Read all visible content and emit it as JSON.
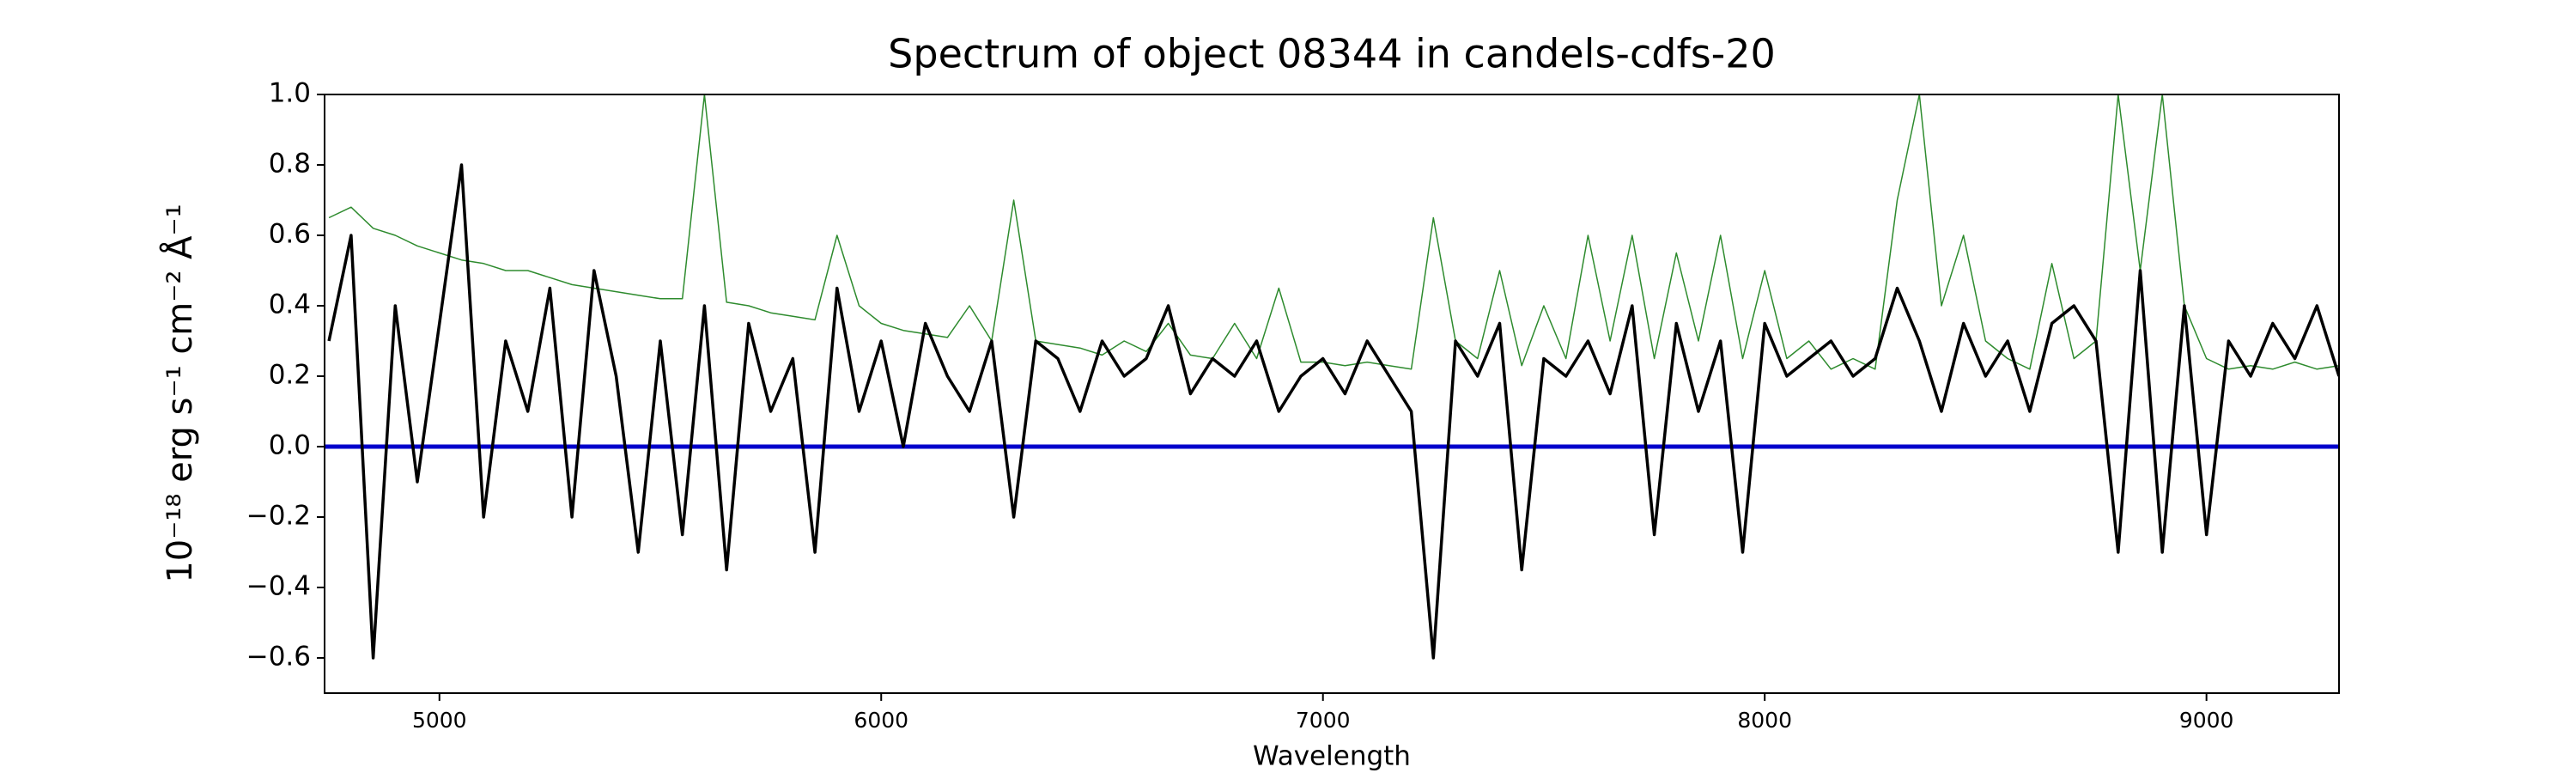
{
  "chart_data": {
    "type": "line",
    "title": "Spectrum of object 08344 in candels-cdfs-20",
    "xlabel": "Wavelength",
    "ylabel": "10⁻¹⁸ erg s⁻¹ cm⁻² Å⁻¹",
    "xlim": [
      4740,
      9300
    ],
    "ylim": [
      -0.7,
      1.0
    ],
    "xticks": [
      5000,
      6000,
      7000,
      8000,
      9000
    ],
    "yticks": [
      {
        "value": -0.6,
        "label": "−0.6"
      },
      {
        "value": -0.4,
        "label": "−0.4"
      },
      {
        "value": -0.2,
        "label": "−0.2"
      },
      {
        "value": 0,
        "label": "0.0"
      },
      0.2,
      0.4,
      0.6,
      0.8,
      {
        "value": 1,
        "label": "1.0"
      }
    ],
    "hline": {
      "value": 0,
      "color": "#0000cc"
    },
    "x": [
      4750,
      4800,
      4850,
      4900,
      4950,
      5000,
      5050,
      5100,
      5150,
      5200,
      5250,
      5300,
      5350,
      5400,
      5450,
      5500,
      5550,
      5600,
      5650,
      5700,
      5750,
      5800,
      5850,
      5900,
      5950,
      6000,
      6050,
      6100,
      6150,
      6200,
      6250,
      6300,
      6350,
      6400,
      6450,
      6500,
      6550,
      6600,
      6650,
      6700,
      6750,
      6800,
      6850,
      6900,
      6950,
      7000,
      7050,
      7100,
      7150,
      7200,
      7250,
      7300,
      7350,
      7400,
      7450,
      7500,
      7550,
      7600,
      7650,
      7700,
      7750,
      7800,
      7850,
      7900,
      7950,
      8000,
      8050,
      8100,
      8150,
      8200,
      8250,
      8300,
      8350,
      8400,
      8450,
      8500,
      8550,
      8600,
      8650,
      8700,
      8750,
      8800,
      8850,
      8900,
      8950,
      9000,
      9050,
      9100,
      9150,
      9200,
      9250,
      9300
    ],
    "series": [
      {
        "color": "#2e8b2e",
        "width": 1.5,
        "values": [
          0.65,
          0.68,
          0.62,
          0.6,
          0.57,
          0.55,
          0.53,
          0.52,
          0.5,
          0.5,
          0.48,
          0.46,
          0.45,
          0.44,
          0.43,
          0.42,
          0.42,
          1.0,
          0.41,
          0.4,
          0.38,
          0.37,
          0.36,
          0.6,
          0.4,
          0.35,
          0.33,
          0.32,
          0.31,
          0.4,
          0.3,
          0.7,
          0.3,
          0.29,
          0.28,
          0.26,
          0.3,
          0.27,
          0.35,
          0.26,
          0.25,
          0.35,
          0.25,
          0.45,
          0.24,
          0.24,
          0.23,
          0.24,
          0.23,
          0.22,
          0.65,
          0.3,
          0.25,
          0.5,
          0.23,
          0.4,
          0.25,
          0.6,
          0.3,
          0.6,
          0.25,
          0.55,
          0.3,
          0.6,
          0.25,
          0.5,
          0.25,
          0.3,
          0.22,
          0.25,
          0.22,
          0.7,
          1.0,
          0.4,
          0.6,
          0.3,
          0.25,
          0.22,
          0.52,
          0.25,
          0.3,
          1.0,
          0.5,
          1.0,
          0.4,
          0.25,
          0.22,
          0.23,
          0.22,
          0.24,
          0.22,
          0.23
        ]
      },
      {
        "color": "#000000",
        "width": 3.5,
        "values": [
          0.3,
          0.6,
          -0.6,
          0.4,
          -0.1,
          0.35,
          0.8,
          -0.2,
          0.3,
          0.1,
          0.45,
          -0.2,
          0.5,
          0.2,
          -0.3,
          0.3,
          -0.25,
          0.4,
          -0.35,
          0.35,
          0.1,
          0.25,
          -0.3,
          0.45,
          0.1,
          0.3,
          0,
          0.35,
          0.2,
          0.1,
          0.3,
          -0.2,
          0.3,
          0.25,
          0.1,
          0.3,
          0.2,
          0.25,
          0.4,
          0.15,
          0.25,
          0.2,
          0.3,
          0.1,
          0.2,
          0.25,
          0.15,
          0.3,
          0.2,
          0.1,
          -0.6,
          0.3,
          0.2,
          0.35,
          -0.35,
          0.25,
          0.2,
          0.3,
          0.15,
          0.4,
          -0.25,
          0.35,
          0.1,
          0.3,
          -0.3,
          0.35,
          0.2,
          0.25,
          0.3,
          0.2,
          0.25,
          0.45,
          0.3,
          0.1,
          0.35,
          0.2,
          0.3,
          0.1,
          0.35,
          0.4,
          0.3,
          -0.3,
          0.5,
          -0.3,
          0.4,
          -0.25,
          0.3,
          0.2,
          0.35,
          0.25,
          0.4,
          0.2
        ]
      }
    ]
  }
}
